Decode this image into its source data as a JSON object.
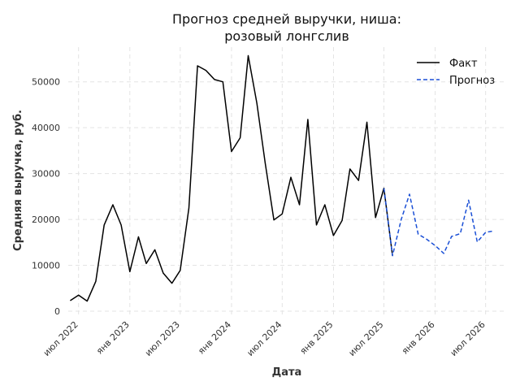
{
  "chart_data": {
    "type": "line",
    "title_lines": [
      "Прогноз средней выручки, ниша:",
      "розовый лонгслив"
    ],
    "xlabel": "Дата",
    "ylabel": "Средняя выручка, руб.",
    "ylim": [
      0,
      58000
    ],
    "xlim": [
      "2022-05-25",
      "2026-09-10"
    ],
    "yticks": [
      0,
      10000,
      20000,
      30000,
      40000,
      50000
    ],
    "ytick_labels": [
      "0",
      "10000",
      "20000",
      "30000",
      "40000",
      "50000"
    ],
    "xticks": [
      "2022-07-01",
      "2023-01-01",
      "2023-07-01",
      "2024-01-01",
      "2024-07-01",
      "2025-01-01",
      "2025-07-01",
      "2026-01-01",
      "2026-07-01"
    ],
    "xtick_labels": [
      "июл 2022",
      "янв 2023",
      "июл 2023",
      "янв 2024",
      "июл 2024",
      "янв 2025",
      "июл 2025",
      "янв 2026",
      "июл 2026"
    ],
    "grid": true,
    "legend_position": "top-right",
    "series": [
      {
        "name": "Факт",
        "color": "#000000",
        "style": "solid",
        "x": [
          "2022-06-01",
          "2022-07-01",
          "2022-08-01",
          "2022-09-01",
          "2022-10-01",
          "2022-11-01",
          "2022-12-01",
          "2023-01-01",
          "2023-02-01",
          "2023-03-01",
          "2023-04-01",
          "2023-05-01",
          "2023-06-01",
          "2023-07-01",
          "2023-08-01",
          "2023-09-01",
          "2023-10-01",
          "2023-11-01",
          "2023-12-01",
          "2024-01-01",
          "2024-02-01",
          "2024-03-01",
          "2024-04-01",
          "2024-05-01",
          "2024-06-01",
          "2024-07-01",
          "2024-08-01",
          "2024-09-01",
          "2024-10-01",
          "2024-11-01",
          "2024-12-01",
          "2025-01-01",
          "2025-02-01",
          "2025-03-01",
          "2025-04-01",
          "2025-05-01",
          "2025-06-01",
          "2025-07-01",
          "2025-08-01"
        ],
        "values": [
          2300,
          3500,
          2200,
          6500,
          18800,
          23200,
          18800,
          8600,
          16200,
          10400,
          13400,
          8300,
          6100,
          8900,
          22500,
          53500,
          52500,
          50500,
          50000,
          34800,
          37800,
          55700,
          45400,
          32300,
          19900,
          21200,
          29200,
          23200,
          41800,
          18800,
          23200,
          16500,
          19800,
          31000,
          28500,
          41200,
          20400,
          26800,
          12100
        ]
      },
      {
        "name": "Прогноз",
        "color": "#1a4fd6",
        "style": "dashed",
        "x": [
          "2025-07-01",
          "2025-08-01",
          "2025-09-01",
          "2025-10-01",
          "2025-11-01",
          "2025-12-01",
          "2026-01-01",
          "2026-02-01",
          "2026-03-01",
          "2026-04-01",
          "2026-05-01",
          "2026-06-01",
          "2026-07-01",
          "2026-08-01"
        ],
        "values": [
          26800,
          12100,
          20000,
          25500,
          16800,
          15700,
          14300,
          12600,
          16300,
          16900,
          24200,
          15100,
          17200,
          17500
        ]
      }
    ]
  }
}
